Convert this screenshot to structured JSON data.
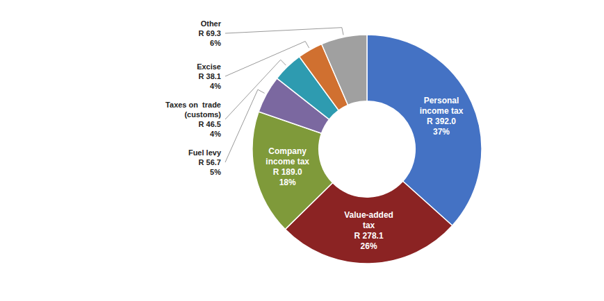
{
  "chart_data": {
    "type": "pie",
    "categories": [
      "Personal\nincome tax",
      "Value-added\ntax",
      "Company\nincome tax",
      "Fuel levy",
      "Taxes on  trade\n(customs)",
      "Excise",
      "Other"
    ],
    "values": [
      392.0,
      278.1,
      189.0,
      56.7,
      46.5,
      38.1,
      69.3
    ],
    "value_labels": [
      "R 392.0",
      "R 278.1",
      "R 189.0",
      "R 56.7",
      "R 46.5",
      "R 38.1",
      "R 69.3"
    ],
    "percentages": [
      37,
      26,
      18,
      5,
      4,
      4,
      6
    ],
    "percentage_labels": [
      "37%",
      "26%",
      "18%",
      "5%",
      "4%",
      "4%",
      "6%"
    ],
    "colors": [
      "#4472C4",
      "#8B2323",
      "#7F9A3A",
      "#7B68A0",
      "#2E9BB0",
      "#D07030",
      "#A0A0A0"
    ]
  }
}
